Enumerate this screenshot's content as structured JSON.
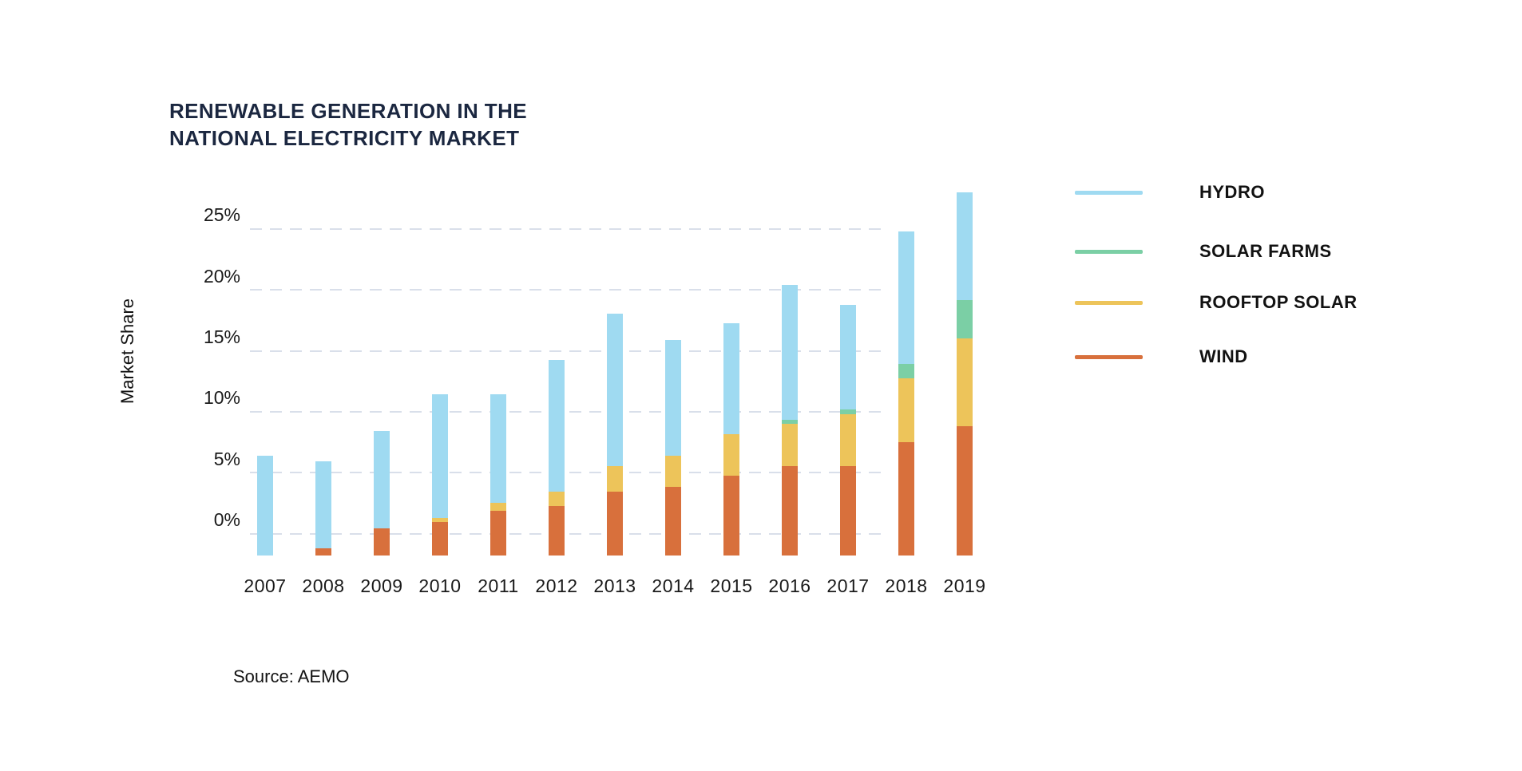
{
  "title": {
    "line1": "RENEWABLE GENERATION IN THE",
    "line2": "NATIONAL ELECTRICITY MARKET"
  },
  "y_axis": {
    "title": "Market Share",
    "tick_labels": [
      "25%",
      "20%",
      "15%",
      "10%",
      "5%",
      "0%"
    ],
    "tick_values": [
      25,
      20,
      15,
      10,
      5,
      0
    ]
  },
  "legend": {
    "items": [
      {
        "label": "HYDRO",
        "color": "#9FDAF1"
      },
      {
        "label": "SOLAR FARMS",
        "color": "#7BCFA5"
      },
      {
        "label": "ROOFTOP SOLAR",
        "color": "#EDC45A"
      },
      {
        "label": "WIND",
        "color": "#D8703C"
      }
    ]
  },
  "source": {
    "text": "Source: AEMO"
  },
  "chart_data": {
    "type": "bar",
    "stacked": true,
    "title": "Renewable generation in the National Electricity Market",
    "ylabel": "Market Share",
    "xlabel": "",
    "categories": [
      "2007",
      "2008",
      "2009",
      "2010",
      "2011",
      "2012",
      "2013",
      "2014",
      "2015",
      "2016",
      "2017",
      "2018",
      "2019"
    ],
    "series": [
      {
        "name": "WIND",
        "color": "#D8703C",
        "values": [
          0,
          0.6,
          2.25,
          2.75,
          3.7,
          4.1,
          5.25,
          5.65,
          6.55,
          7.4,
          7.4,
          9.35,
          10.65
        ]
      },
      {
        "name": "ROOFTOP SOLAR",
        "color": "#EDC45A",
        "values": [
          0,
          0,
          0,
          0.35,
          0.65,
          1.2,
          2.15,
          2.6,
          3.45,
          3.45,
          4.2,
          5.2,
          7.2
        ]
      },
      {
        "name": "SOLAR FARMS",
        "color": "#7BCFA5",
        "values": [
          0,
          0,
          0,
          0,
          0,
          0,
          0,
          0,
          0,
          0.35,
          0.4,
          1.2,
          3.15
        ]
      },
      {
        "name": "HYDRO",
        "color": "#9FDAF1",
        "values": [
          8.25,
          7.15,
          8.0,
          10.15,
          8.9,
          10.75,
          12.5,
          9.5,
          9.1,
          11.05,
          8.6,
          10.85,
          8.85
        ]
      }
    ],
    "stack_order_bottom_to_top": [
      "WIND",
      "ROOFTOP SOLAR",
      "SOLAR FARMS",
      "HYDRO"
    ],
    "bar_baseline_pct": -1.83,
    "bar_top_axis_reading_pct": [
      6.4,
      5.9,
      8.4,
      11.4,
      11.4,
      14.2,
      18.1,
      15.9,
      17.3,
      20.4,
      18.8,
      24.8,
      28.0
    ],
    "yticks": [
      0,
      5,
      10,
      15,
      20,
      25
    ],
    "ylim": [
      -1.83,
      28.5
    ],
    "grid": "horizontal dashed",
    "legend_position": "right"
  }
}
